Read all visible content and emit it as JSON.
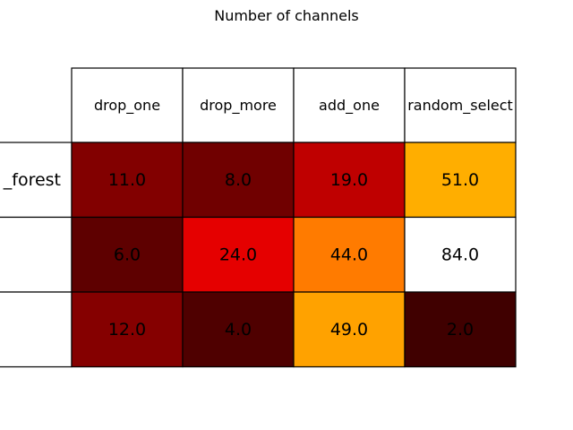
{
  "chart_data": {
    "type": "table",
    "title": "Number of channels",
    "columns": [
      "drop_one",
      "drop_more",
      "add_one",
      "random_select"
    ],
    "rows": [
      {
        "label": "_forest",
        "values": [
          11.0,
          8.0,
          19.0,
          51.0
        ],
        "colors": [
          "#820000",
          "#700000",
          "#bf0000",
          "#ffae00"
        ]
      },
      {
        "label": "",
        "values": [
          6.0,
          24.0,
          44.0,
          84.0
        ],
        "colors": [
          "#5e0000",
          "#e50000",
          "#ff7b00",
          "#ffffff"
        ]
      },
      {
        "label": "",
        "values": [
          12.0,
          4.0,
          49.0,
          2.0
        ],
        "colors": [
          "#850000",
          "#4f0000",
          "#ffa200",
          "#400000"
        ]
      }
    ],
    "value_format": "one-decimal",
    "colormap": "hot"
  }
}
